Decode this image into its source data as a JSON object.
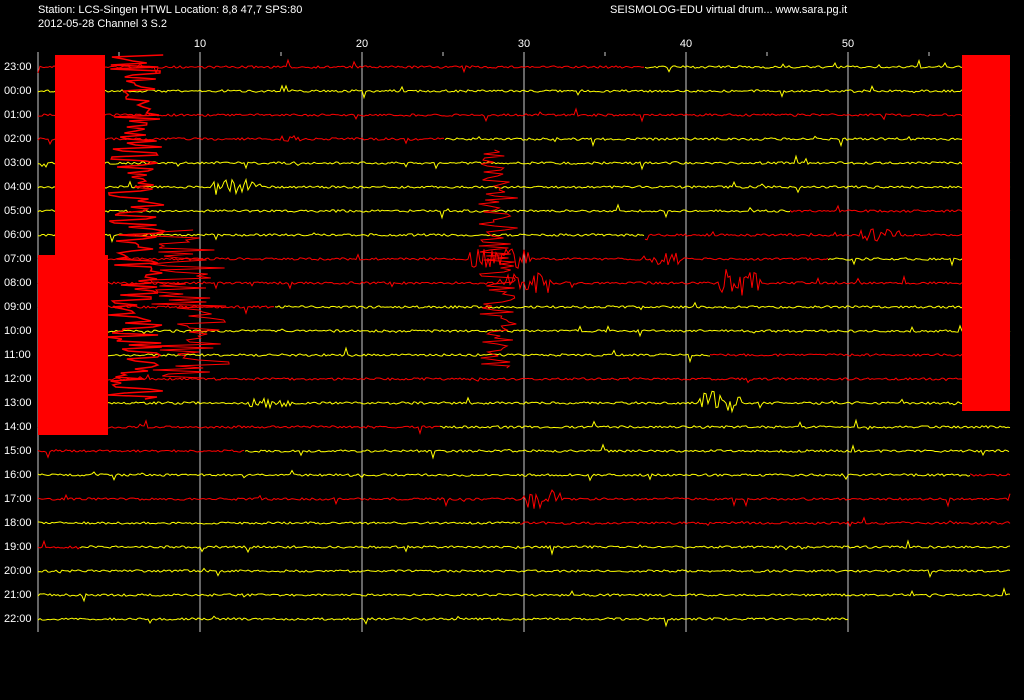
{
  "header": {
    "station": "Station: LCS-Singen HTWL Location:  8,8 47,7 SPS:80",
    "date": "2012-05-28  Channel 3  S.2",
    "source": "SEISMOLOG-EDU virtual drum... www.sara.pg.it"
  },
  "x_axis": {
    "ticks": [
      "10",
      "20",
      "30",
      "40",
      "50"
    ]
  },
  "rows": [
    "23:00",
    "00:00",
    "01:00",
    "02:00",
    "03:00",
    "04:00",
    "05:00",
    "06:00",
    "07:00",
    "08:00",
    "09:00",
    "10:00",
    "11:00",
    "12:00",
    "13:00",
    "14:00",
    "15:00",
    "16:00",
    "17:00",
    "18:00",
    "19:00",
    "20:00",
    "21:00",
    "22:00"
  ]
}
